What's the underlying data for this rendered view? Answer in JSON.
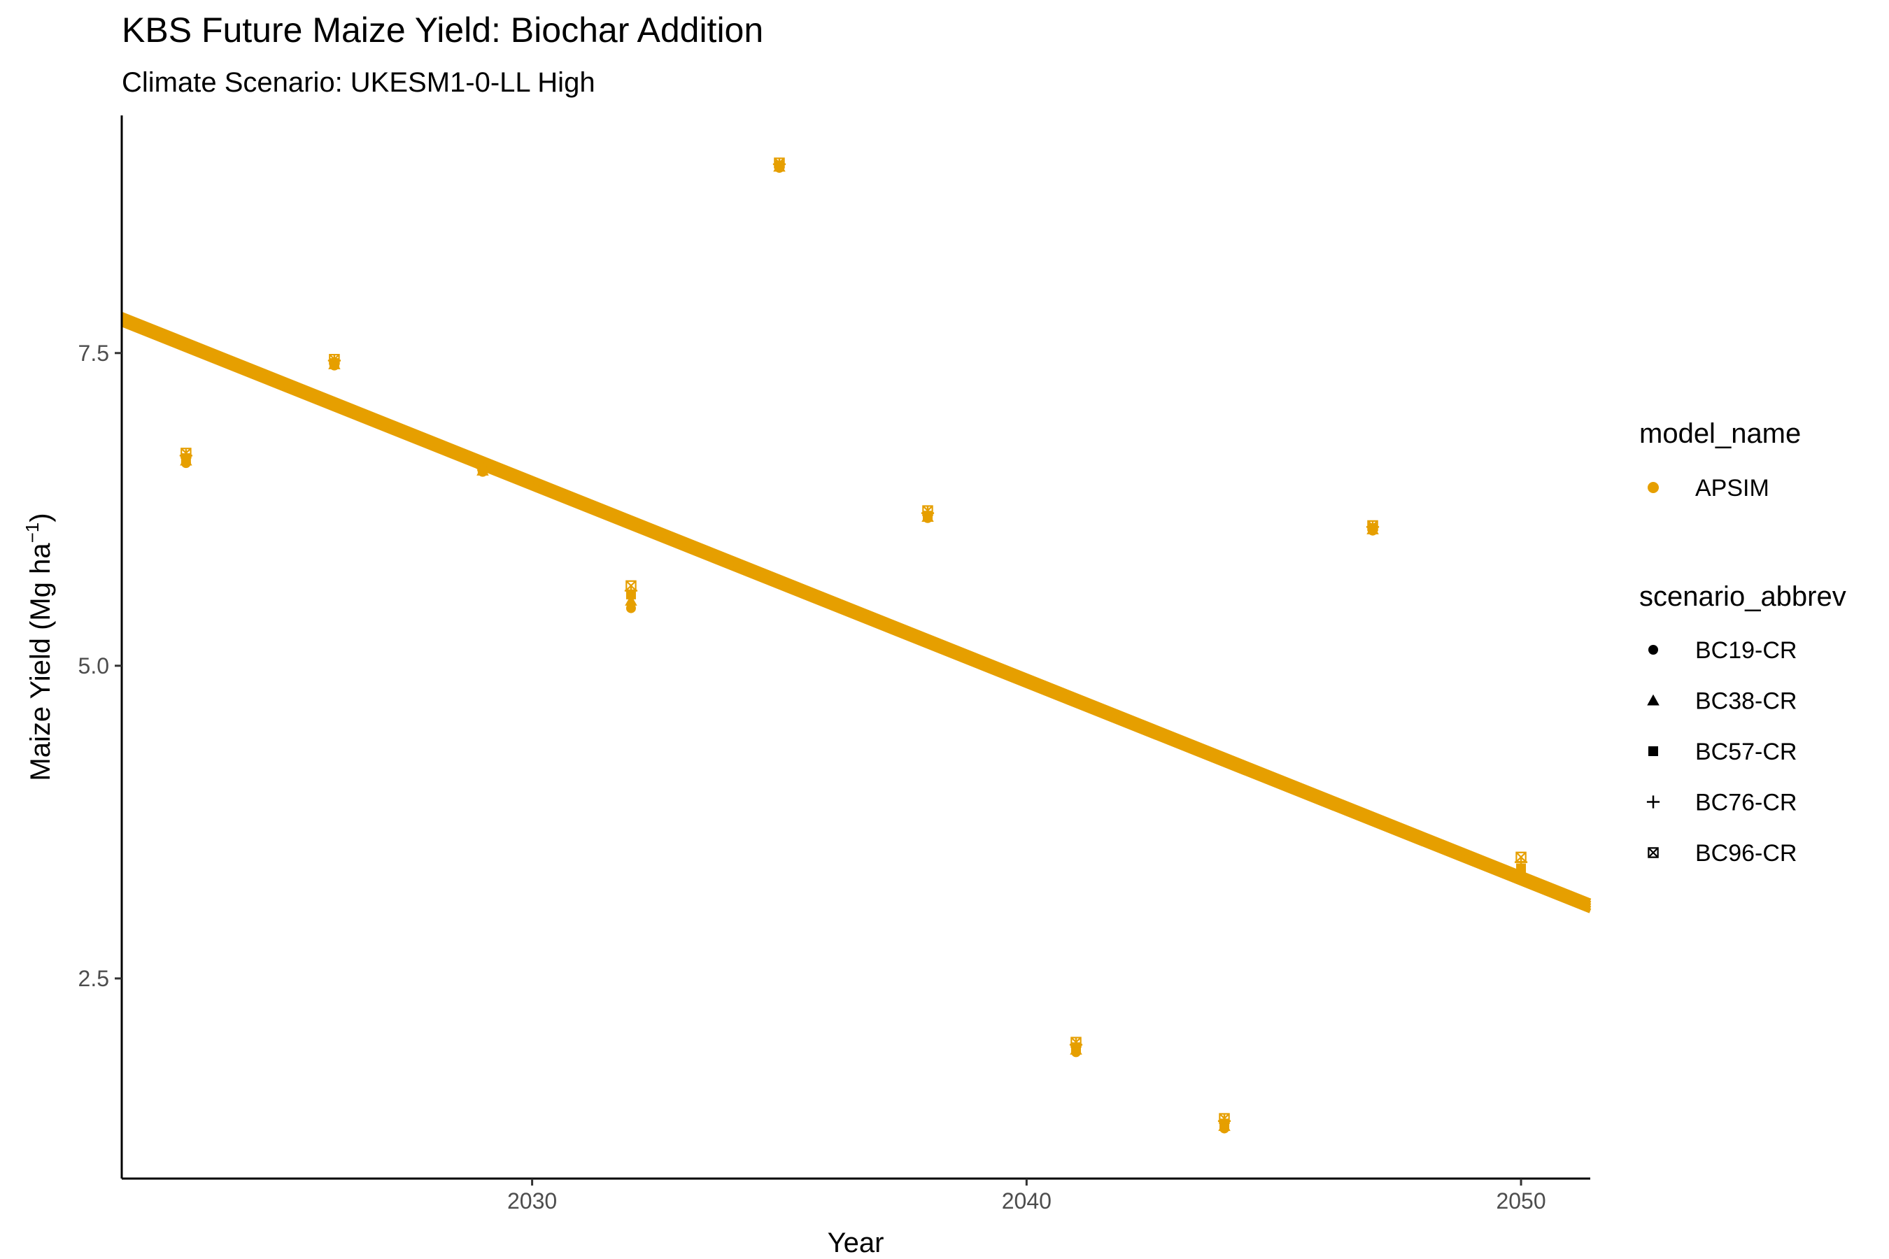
{
  "chart_data": {
    "type": "scatter",
    "title": "KBS Future Maize Yield: Biochar Addition",
    "subtitle": "Climate Scenario: UKESM1-0-LL High",
    "xlabel": "Year",
    "ylabel": {
      "main": "Maize Yield (Mg ha",
      "sup": "−1",
      "end": ")"
    },
    "xlim": [
      2021.7,
      2051.4
    ],
    "ylim": [
      0.9,
      9.4
    ],
    "xticks": [
      2030,
      2040,
      2050
    ],
    "xtick_labels": [
      "2030",
      "2040",
      "2050"
    ],
    "yticks": [
      2.5,
      5.0,
      7.5
    ],
    "ytick_labels": [
      "2.5",
      "5.0",
      "7.5"
    ],
    "grid": false,
    "legend_position": "right",
    "color": "#E69F00",
    "legend": {
      "model_title": "model_name",
      "models": [
        {
          "name": "APSIM",
          "color": "#E69F00",
          "shape": "circle"
        }
      ],
      "scenario_title": "scenario_abbrev",
      "scenarios": [
        {
          "name": "BC19-CR",
          "shape": "circle"
        },
        {
          "name": "BC38-CR",
          "shape": "triangle"
        },
        {
          "name": "BC57-CR",
          "shape": "square"
        },
        {
          "name": "BC76-CR",
          "shape": "plus"
        },
        {
          "name": "BC96-CR",
          "shape": "square-x"
        }
      ]
    },
    "x": [
      2023,
      2026,
      2029,
      2032,
      2035,
      2038,
      2041,
      2044,
      2047,
      2050
    ],
    "series": [
      {
        "name": "BC19-CR",
        "shape": "circle",
        "values": [
          6.62,
          7.4,
          6.55,
          5.46,
          8.98,
          6.18,
          1.91,
          1.3,
          6.08,
          3.31
        ]
      },
      {
        "name": "BC38-CR",
        "shape": "triangle",
        "values": [
          6.64,
          7.41,
          6.56,
          5.52,
          8.99,
          6.19,
          1.93,
          1.32,
          6.09,
          3.34
        ]
      },
      {
        "name": "BC57-CR",
        "shape": "square",
        "values": [
          6.66,
          7.42,
          6.57,
          5.57,
          9.0,
          6.2,
          1.95,
          1.34,
          6.1,
          3.38
        ]
      },
      {
        "name": "BC76-CR",
        "shape": "plus",
        "values": [
          6.68,
          7.44,
          6.58,
          5.6,
          9.01,
          6.22,
          1.97,
          1.36,
          6.11,
          3.43
        ]
      },
      {
        "name": "BC96-CR",
        "shape": "square-x",
        "values": [
          6.7,
          7.45,
          6.6,
          5.64,
          9.02,
          6.24,
          1.99,
          1.38,
          6.12,
          3.47
        ]
      }
    ],
    "trend_lines": [
      {
        "name": "BC19-CR",
        "x": [
          2021.7,
          2051.4
        ],
        "y": [
          7.73,
          3.04
        ]
      },
      {
        "name": "BC38-CR",
        "x": [
          2021.7,
          2051.4
        ],
        "y": [
          7.75,
          3.06
        ]
      },
      {
        "name": "BC57-CR",
        "x": [
          2021.7,
          2051.4
        ],
        "y": [
          7.77,
          3.08
        ]
      },
      {
        "name": "BC76-CR",
        "x": [
          2021.7,
          2051.4
        ],
        "y": [
          7.79,
          3.1
        ]
      },
      {
        "name": "BC96-CR",
        "x": [
          2021.7,
          2051.4
        ],
        "y": [
          7.81,
          3.12
        ]
      }
    ]
  }
}
